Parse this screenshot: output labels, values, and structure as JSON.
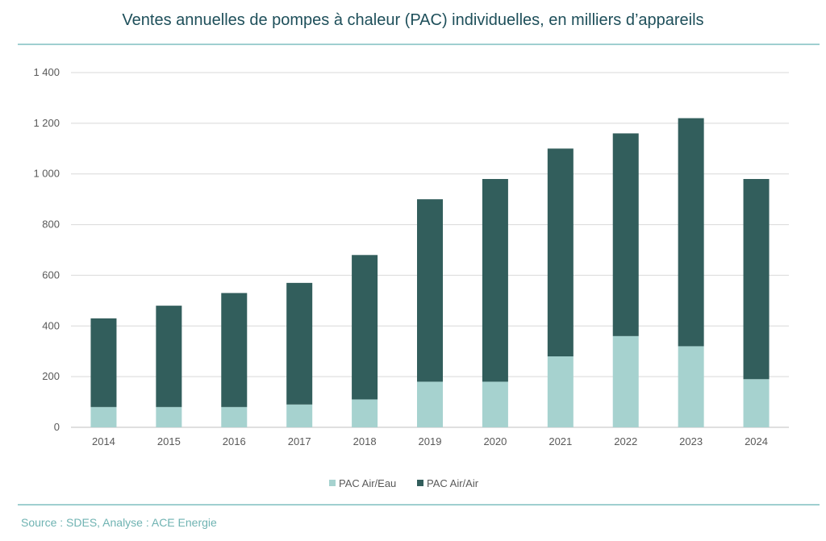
{
  "title": "Ventes annuelles de pompes à chaleur (PAC) individuelles, en milliers d’appareils",
  "source": "Source : SDES, Analyse : ACE Energie",
  "colors": {
    "air_eau": "#a6d2cf",
    "air_air": "#325e5c",
    "title": "#1e4f5a",
    "rule": "#9fcfd0"
  },
  "chart_data": {
    "type": "bar",
    "stacked": true,
    "title": "Ventes annuelles de pompes à chaleur (PAC) individuelles, en milliers d’appareils",
    "categories": [
      "2014",
      "2015",
      "2016",
      "2017",
      "2018",
      "2019",
      "2020",
      "2021",
      "2022",
      "2023",
      "2024"
    ],
    "series": [
      {
        "name": "PAC Air/Eau",
        "color": "#a6d2cf",
        "values": [
          80,
          80,
          80,
          90,
          110,
          180,
          180,
          280,
          360,
          320,
          190
        ]
      },
      {
        "name": "PAC Air/Air",
        "color": "#325e5c",
        "values": [
          350,
          400,
          450,
          480,
          570,
          720,
          800,
          820,
          800,
          900,
          790
        ]
      }
    ],
    "ylim": [
      0,
      1400
    ],
    "yticks": [
      0,
      200,
      400,
      600,
      800,
      1000,
      1200,
      1400
    ],
    "ytick_labels": [
      "0",
      "200",
      "400",
      "600",
      "800",
      "1 000",
      "1 200",
      "1 400"
    ],
    "grid": true,
    "legend_position": "bottom"
  }
}
